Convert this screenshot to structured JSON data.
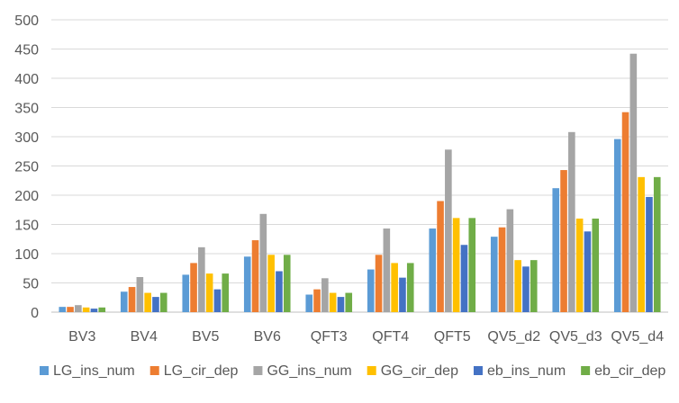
{
  "chart_data": {
    "type": "bar",
    "title": "",
    "xlabel": "",
    "ylabel": "",
    "ylim": [
      0,
      500
    ],
    "yticks": [
      "0",
      "50",
      "100",
      "150",
      "200",
      "250",
      "300",
      "350",
      "400",
      "450",
      "500"
    ],
    "grid": "horizontal",
    "legend_position": "bottom",
    "categories": [
      "BV3",
      "BV4",
      "BV5",
      "BV6",
      "QFT3",
      "QFT4",
      "QFT5",
      "QV5_d2",
      "QV5_d3",
      "QV5_d4"
    ],
    "series": [
      {
        "name": "LG_ins_num",
        "color": "#5B9BD5",
        "values": [
          9,
          35,
          64,
          95,
          30,
          73,
          143,
          129,
          212,
          296
        ]
      },
      {
        "name": "LG_cir_dep",
        "color": "#ED7D31",
        "values": [
          9,
          43,
          84,
          123,
          39,
          98,
          190,
          145,
          243,
          342
        ]
      },
      {
        "name": "GG_ins_num",
        "color": "#A5A5A5",
        "values": [
          12,
          60,
          111,
          168,
          58,
          143,
          278,
          176,
          308,
          442
        ]
      },
      {
        "name": "GG_cir_dep",
        "color": "#FFC000",
        "values": [
          8,
          33,
          66,
          98,
          33,
          84,
          161,
          89,
          160,
          231
        ]
      },
      {
        "name": "eb_ins_num",
        "color": "#4472C4",
        "values": [
          6,
          26,
          39,
          70,
          26,
          59,
          115,
          78,
          138,
          197
        ]
      },
      {
        "name": "eb_cir_dep",
        "color": "#70AD47",
        "values": [
          8,
          33,
          66,
          98,
          33,
          84,
          161,
          89,
          160,
          231
        ]
      }
    ]
  }
}
